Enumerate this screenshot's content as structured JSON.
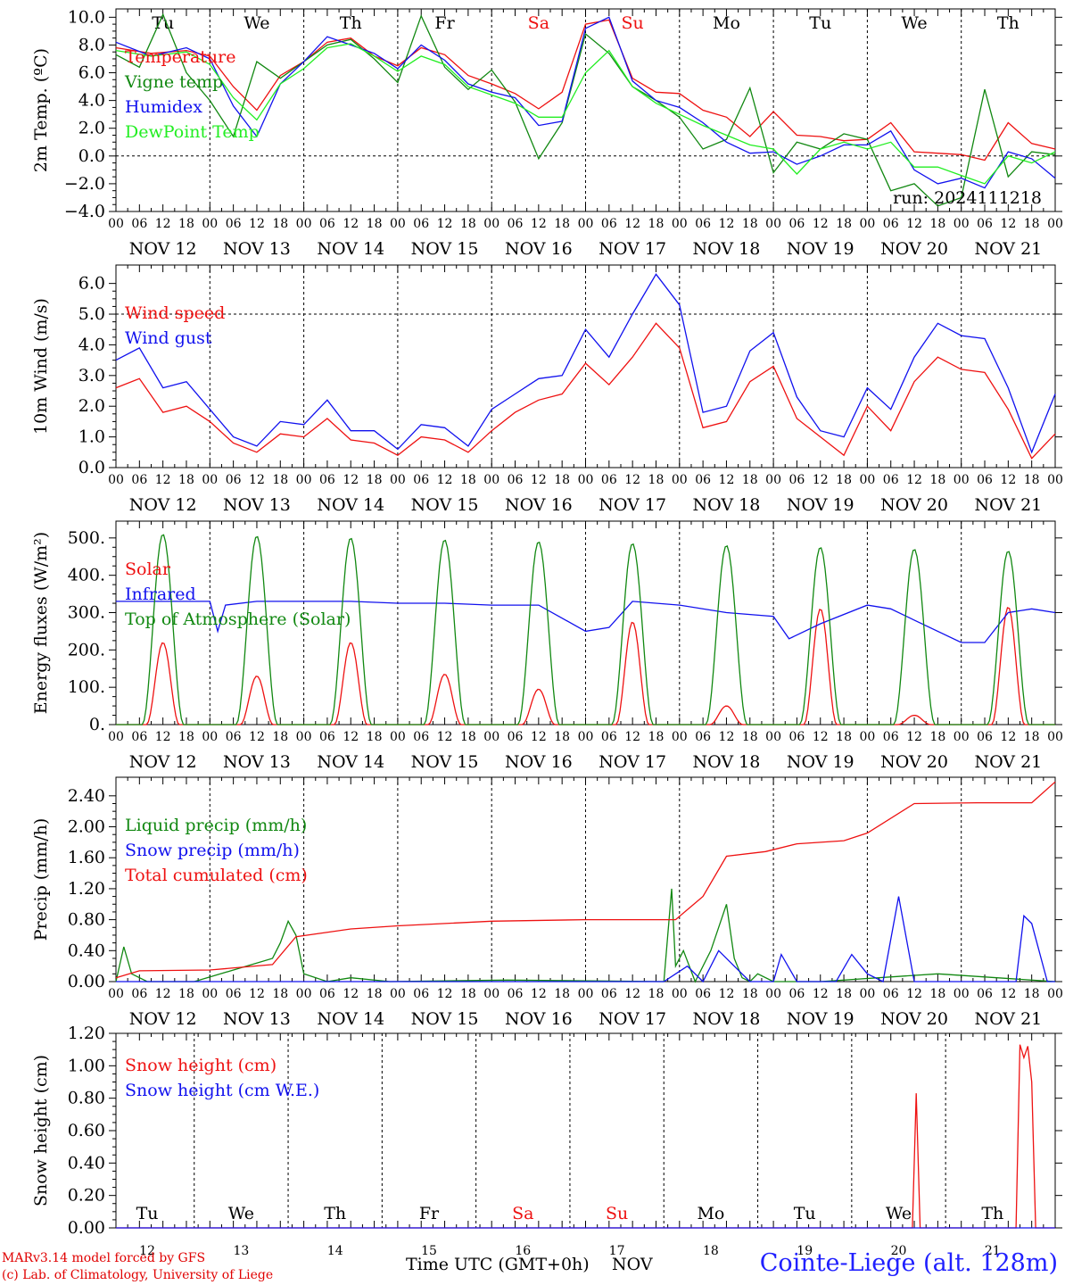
{
  "colors": {
    "red": "#ee1111",
    "darkgreen": "#118811",
    "blue": "#1111ee",
    "lightgreen": "#22ee22",
    "black": "#000000"
  },
  "footer": {
    "model": "MARv3.14 model forced by GFS",
    "copyright": "(c) Lab. of Climatology, University of Liege",
    "time_axis": "Time UTC (GMT+0h)",
    "month": "NOV",
    "station": "Cointe-Liege (alt. 128m)",
    "run": "run: 2024111218"
  },
  "chart_data": [
    {
      "type": "line",
      "ylabel": "2m Temp. (ºC)",
      "ylim": [
        -4,
        10.6
      ],
      "yticks": [
        "10.0",
        "8.0",
        "6.0",
        "4.0",
        "2.0",
        "0.0",
        "−2.0",
        "−4.0"
      ],
      "day_labels": [
        "Tu",
        "We",
        "Th",
        "Fr",
        "Sa",
        "Su",
        "Mo",
        "Tu",
        "We",
        "Th"
      ],
      "date_labels": [
        "NOV 12",
        "NOV 13",
        "NOV 14",
        "NOV 15",
        "NOV 16",
        "NOV 17",
        "NOV 18",
        "NOV 19",
        "NOV 20",
        "NOV 21"
      ],
      "hour_labels": [
        "00",
        "06",
        "12",
        "18"
      ],
      "ref_line": 0,
      "series": [
        {
          "name": "Temperature",
          "color": "red",
          "x": [
            0,
            9,
            18,
            24,
            30,
            36,
            42,
            48,
            54,
            60,
            66,
            72,
            78,
            84,
            90,
            96,
            102,
            108,
            114,
            120,
            126,
            132,
            138,
            144,
            150,
            156,
            162,
            168,
            174,
            180,
            186,
            192,
            198,
            204,
            210,
            216,
            222,
            228,
            234,
            240
          ],
          "values": [
            7.8,
            7.4,
            7.6,
            7.2,
            5.0,
            3.3,
            5.8,
            6.8,
            8.2,
            8.5,
            7.2,
            6.5,
            7.8,
            7.3,
            5.8,
            5.2,
            4.5,
            3.4,
            4.6,
            9.5,
            9.8,
            5.6,
            4.6,
            4.5,
            3.3,
            2.8,
            1.4,
            3.2,
            1.5,
            1.4,
            1.1,
            1.2,
            2.4,
            0.3,
            0.2,
            0.1,
            -0.3,
            2.4,
            0.9,
            0.5
          ]
        },
        {
          "name": "Vigne temp",
          "color": "darkgreen",
          "x": [
            0,
            6,
            12,
            18,
            24,
            30,
            36,
            42,
            48,
            54,
            60,
            66,
            72,
            78,
            84,
            90,
            96,
            102,
            108,
            114,
            120,
            126,
            132,
            138,
            144,
            150,
            156,
            162,
            168,
            174,
            180,
            186,
            192,
            198,
            204,
            210,
            216,
            222,
            228,
            234,
            240
          ],
          "values": [
            7.3,
            6.4,
            10.2,
            6.0,
            4.0,
            1.4,
            6.8,
            5.6,
            6.8,
            8.0,
            8.4,
            7.0,
            5.3,
            10.1,
            6.4,
            4.8,
            6.2,
            3.9,
            -0.2,
            2.4,
            8.8,
            7.4,
            5.0,
            4.0,
            2.8,
            0.5,
            1.2,
            4.9,
            -1.2,
            1.0,
            0.5,
            1.6,
            1.2,
            -2.5,
            -2.0,
            -3.6,
            -3.0,
            4.8,
            -1.5,
            0.3,
            0.1
          ]
        },
        {
          "name": "Humidex",
          "color": "blue",
          "x": [
            0,
            9,
            18,
            24,
            30,
            36,
            42,
            48,
            54,
            60,
            66,
            72,
            78,
            84,
            90,
            96,
            102,
            108,
            114,
            120,
            126,
            132,
            138,
            144,
            150,
            156,
            162,
            168,
            174,
            180,
            186,
            192,
            198,
            204,
            210,
            216,
            222,
            228,
            234,
            240
          ],
          "values": [
            8.2,
            7.2,
            7.8,
            7.0,
            3.6,
            1.4,
            5.2,
            6.8,
            8.6,
            8.0,
            7.4,
            6.3,
            8.0,
            6.9,
            5.2,
            4.6,
            4.2,
            2.2,
            2.5,
            9.2,
            10.0,
            5.4,
            4.0,
            3.5,
            2.4,
            1.0,
            0.2,
            0.3,
            -0.6,
            0.0,
            0.8,
            0.8,
            1.8,
            -1.0,
            -2.0,
            -1.6,
            -2.3,
            0.3,
            -0.2,
            -1.6
          ]
        },
        {
          "name": "DewPoint Temp",
          "color": "lightgreen",
          "x": [
            0,
            9,
            18,
            24,
            30,
            36,
            42,
            48,
            54,
            60,
            66,
            72,
            78,
            84,
            90,
            96,
            102,
            108,
            114,
            120,
            126,
            132,
            138,
            144,
            150,
            156,
            162,
            168,
            174,
            180,
            186,
            192,
            198,
            204,
            210,
            216,
            222,
            228,
            234,
            240
          ],
          "values": [
            7.6,
            7.2,
            7.5,
            6.6,
            4.2,
            2.6,
            5.2,
            6.3,
            7.8,
            8.1,
            7.2,
            6.1,
            7.2,
            6.6,
            5.0,
            4.4,
            3.8,
            2.8,
            2.8,
            6.0,
            7.6,
            5.0,
            3.8,
            3.0,
            2.2,
            1.5,
            0.8,
            0.5,
            -1.3,
            0.5,
            1.0,
            0.5,
            1.0,
            -0.8,
            -0.8,
            -1.4,
            -2.0,
            0.0,
            -0.5,
            0.3
          ]
        }
      ]
    },
    {
      "type": "line",
      "ylabel": "10m Wind (m/s)",
      "ylim": [
        0,
        6.6
      ],
      "yticks": [
        "6.0",
        "5.0",
        "4.0",
        "3.0",
        "2.0",
        "1.0",
        "0.0"
      ],
      "date_labels": [
        "NOV 12",
        "NOV 13",
        "NOV 14",
        "NOV 15",
        "NOV 16",
        "NOV 17",
        "NOV 18",
        "NOV 19",
        "NOV 20",
        "NOV 21"
      ],
      "hour_labels": [
        "00",
        "06",
        "12",
        "18"
      ],
      "ref_line": 5,
      "series": [
        {
          "name": "Wind speed",
          "color": "red",
          "x": [
            0,
            6,
            12,
            18,
            24,
            30,
            36,
            42,
            48,
            54,
            60,
            66,
            72,
            78,
            84,
            90,
            96,
            102,
            108,
            114,
            120,
            126,
            132,
            138,
            144,
            150,
            156,
            162,
            168,
            174,
            180,
            186,
            192,
            198,
            204,
            210,
            216,
            222,
            228,
            234,
            240
          ],
          "values": [
            2.6,
            2.9,
            1.8,
            2.0,
            1.5,
            0.8,
            0.5,
            1.1,
            1.0,
            1.6,
            0.9,
            0.8,
            0.4,
            1.0,
            0.9,
            0.5,
            1.2,
            1.8,
            2.2,
            2.4,
            3.4,
            2.7,
            3.6,
            4.7,
            3.9,
            1.3,
            1.5,
            2.8,
            3.3,
            1.6,
            1.0,
            0.4,
            2.0,
            1.2,
            2.8,
            3.6,
            3.2,
            3.1,
            1.9,
            0.3,
            1.1
          ]
        },
        {
          "name": "Wind gust",
          "color": "blue",
          "x": [
            0,
            6,
            12,
            18,
            24,
            30,
            36,
            42,
            48,
            54,
            60,
            66,
            72,
            78,
            84,
            90,
            96,
            102,
            108,
            114,
            120,
            126,
            132,
            138,
            144,
            150,
            156,
            162,
            168,
            174,
            180,
            186,
            192,
            198,
            204,
            210,
            216,
            222,
            228,
            234,
            240
          ],
          "values": [
            3.5,
            3.9,
            2.6,
            2.8,
            1.9,
            1.0,
            0.7,
            1.5,
            1.4,
            2.2,
            1.2,
            1.2,
            0.6,
            1.4,
            1.3,
            0.7,
            1.9,
            2.4,
            2.9,
            3.0,
            4.5,
            3.6,
            5.0,
            6.3,
            5.3,
            1.8,
            2.0,
            3.8,
            4.4,
            2.3,
            1.2,
            1.0,
            2.6,
            1.9,
            3.6,
            4.7,
            4.3,
            4.2,
            2.6,
            0.5,
            2.4
          ]
        }
      ]
    },
    {
      "type": "line",
      "ylabel": "Energy fluxes (W/m²)",
      "ylim": [
        0,
        545
      ],
      "yticks": [
        "500.",
        "400.",
        "300.",
        "200.",
        "100.",
        "0."
      ],
      "date_labels": [
        "NOV 12",
        "NOV 13",
        "NOV 14",
        "NOV 15",
        "NOV 16",
        "NOV 17",
        "NOV 18",
        "NOV 19",
        "NOV 20",
        "NOV 21"
      ],
      "hour_labels": [
        "00",
        "06",
        "12",
        "18"
      ],
      "series": [
        {
          "name": "Solar",
          "color": "red",
          "daily_peak": [
            220,
            130,
            220,
            135,
            95,
            275,
            50,
            310,
            25,
            315
          ]
        },
        {
          "name": "Infrared",
          "color": "blue",
          "x": [
            0,
            12,
            24,
            26,
            28,
            36,
            48,
            60,
            72,
            84,
            96,
            108,
            120,
            126,
            132,
            144,
            156,
            168,
            172,
            180,
            192,
            198,
            204,
            216,
            222,
            228,
            234,
            240
          ],
          "values": [
            330,
            330,
            330,
            250,
            320,
            330,
            330,
            330,
            325,
            325,
            320,
            320,
            250,
            260,
            330,
            320,
            300,
            290,
            230,
            270,
            320,
            310,
            280,
            220,
            220,
            300,
            310,
            300
          ]
        },
        {
          "name": "Top of Atmosphere (Solar)",
          "color": "darkgreen",
          "daily_peak": [
            510,
            505,
            500,
            495,
            490,
            485,
            480,
            475,
            470,
            465
          ]
        }
      ]
    },
    {
      "type": "line",
      "ylabel": "Precip (mm/h)",
      "ylim": [
        0,
        2.64
      ],
      "yticks": [
        "2.40",
        "2.00",
        "1.60",
        "1.20",
        "0.80",
        "0.40",
        "0.00"
      ],
      "date_labels": [
        "NOV 12",
        "NOV 13",
        "NOV 14",
        "NOV 15",
        "NOV 16",
        "NOV 17",
        "NOV 18",
        "NOV 19",
        "NOV 20",
        "NOV 21"
      ],
      "hour_labels": [
        "00",
        "06",
        "12",
        "18"
      ],
      "series": [
        {
          "name": "Liquid precip (mm/h)",
          "color": "darkgreen",
          "x": [
            0,
            2,
            4,
            8,
            20,
            40,
            42,
            44,
            46,
            48,
            54,
            60,
            70,
            100,
            140,
            142,
            143,
            145,
            148,
            152,
            156,
            158,
            160,
            162,
            164,
            168,
            180,
            210,
            240
          ],
          "values": [
            0.0,
            0.45,
            0.1,
            0.0,
            0.0,
            0.3,
            0.5,
            0.78,
            0.6,
            0.1,
            0.0,
            0.05,
            0.0,
            0.02,
            0.0,
            1.2,
            0.2,
            0.4,
            0.0,
            0.4,
            1.0,
            0.3,
            0.05,
            0.0,
            0.1,
            0.0,
            0.0,
            0.1,
            0.0
          ]
        },
        {
          "name": "Snow precip (mm/h)",
          "color": "blue",
          "x": [
            0,
            140,
            146,
            150,
            154,
            158,
            162,
            168,
            170,
            174,
            184,
            188,
            192,
            196,
            200,
            204,
            216,
            230,
            232,
            234,
            238,
            240
          ],
          "values": [
            0,
            0,
            0.2,
            0.0,
            0.4,
            0.2,
            0.0,
            0.0,
            0.35,
            0.0,
            0.0,
            0.35,
            0.1,
            0.0,
            1.1,
            0.0,
            0.0,
            0.0,
            0.85,
            0.75,
            0.0,
            0.0
          ]
        },
        {
          "name": "Total cumulated (cm)",
          "color": "red",
          "x": [
            0,
            6,
            24,
            40,
            46,
            60,
            72,
            96,
            120,
            143,
            150,
            156,
            166,
            174,
            186,
            192,
            204,
            220,
            234,
            240
          ],
          "values": [
            0.05,
            0.14,
            0.15,
            0.22,
            0.58,
            0.68,
            0.72,
            0.78,
            0.8,
            0.8,
            1.1,
            1.62,
            1.68,
            1.78,
            1.82,
            1.92,
            2.3,
            2.31,
            2.31,
            2.58
          ]
        }
      ]
    },
    {
      "type": "line",
      "ylabel": "Snow height (cm)",
      "ylim": [
        0,
        1.2
      ],
      "yticks": [
        "1.20",
        "1.00",
        "0.80",
        "0.60",
        "0.40",
        "0.20",
        "0.00"
      ],
      "day_labels": [
        "Tu",
        "We",
        "Th",
        "Fr",
        "Sa",
        "Su",
        "Mo",
        "Tu",
        "We",
        "Th"
      ],
      "date_numbers": [
        "12",
        "13",
        "14",
        "15",
        "16",
        "17",
        "18",
        "19",
        "20",
        "21"
      ],
      "series": [
        {
          "name": "Snow height (cm)",
          "color": "red",
          "x": [
            0,
            203.5,
            204.5,
            205.5,
            230,
            231,
            232,
            233,
            234,
            235,
            240
          ],
          "values": [
            0,
            0,
            0.83,
            0,
            0,
            1.13,
            1.05,
            1.12,
            0.9,
            0,
            0
          ]
        },
        {
          "name": "Snow height (cm W.E.)",
          "color": "blue",
          "x": [
            0,
            240
          ],
          "values": [
            0,
            0
          ]
        }
      ]
    }
  ]
}
